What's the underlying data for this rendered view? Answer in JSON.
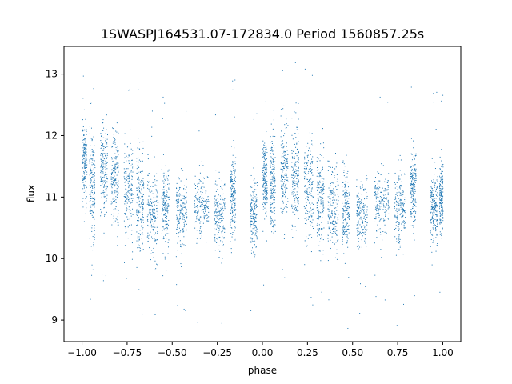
{
  "chart_data": {
    "type": "scatter",
    "title": "1SWASPJ164531.07-172834.0 Period 1560857.25s",
    "xlabel": "phase",
    "ylabel": "flux",
    "xlim": [
      -1.1,
      1.1
    ],
    "ylim": [
      8.65,
      13.45
    ],
    "grid": false,
    "marker_color": "#1f77b4",
    "x_ticks": [
      {
        "value": -1.0,
        "label": "−1.00"
      },
      {
        "value": -0.75,
        "label": "−0.75"
      },
      {
        "value": -0.5,
        "label": "−0.50"
      },
      {
        "value": -0.25,
        "label": "−0.25"
      },
      {
        "value": 0.0,
        "label": "0.00"
      },
      {
        "value": 0.25,
        "label": "0.25"
      },
      {
        "value": 0.5,
        "label": "0.50"
      },
      {
        "value": 0.75,
        "label": "0.75"
      },
      {
        "value": 1.0,
        "label": "1.00"
      }
    ],
    "y_ticks": [
      {
        "value": 9,
        "label": "9"
      },
      {
        "value": 10,
        "label": "10"
      },
      {
        "value": 11,
        "label": "11"
      },
      {
        "value": 12,
        "label": "12"
      },
      {
        "value": 13,
        "label": "13"
      }
    ],
    "series": [
      {
        "phase_range": [
          -1.0,
          1.0
        ],
        "point_count": 5000,
        "period_phase": 1.0,
        "clusters": [
          {
            "x": [
              -1.0,
              -0.975
            ],
            "y_center": 11.6,
            "y_spread": 0.6
          },
          {
            "x": [
              -0.96,
              -0.93
            ],
            "y_center": 11.2,
            "y_spread": 0.75
          },
          {
            "x": [
              -0.9,
              -0.86
            ],
            "y_center": 11.4,
            "y_spread": 0.7
          },
          {
            "x": [
              -0.84,
              -0.8
            ],
            "y_center": 11.3,
            "y_spread": 0.65
          },
          {
            "x": [
              -0.77,
              -0.72
            ],
            "y_center": 11.1,
            "y_spread": 0.8
          },
          {
            "x": [
              -0.7,
              -0.66
            ],
            "y_center": 10.95,
            "y_spread": 0.7
          },
          {
            "x": [
              -0.64,
              -0.58
            ],
            "y_center": 10.8,
            "y_spread": 0.65
          },
          {
            "x": [
              -0.56,
              -0.52
            ],
            "y_center": 10.8,
            "y_spread": 0.6
          },
          {
            "x": [
              -0.48,
              -0.42
            ],
            "y_center": 10.75,
            "y_spread": 0.5
          },
          {
            "x": [
              -0.38,
              -0.3
            ],
            "y_center": 10.9,
            "y_spread": 0.45
          },
          {
            "x": [
              -0.27,
              -0.21
            ],
            "y_center": 10.75,
            "y_spread": 0.55
          },
          {
            "x": [
              -0.18,
              -0.15
            ],
            "y_center": 11.0,
            "y_spread": 0.6
          },
          {
            "x": [
              -0.07,
              -0.03
            ],
            "y_center": 10.7,
            "y_spread": 0.5
          },
          {
            "x": [
              0.0,
              0.025
            ],
            "y_center": 11.3,
            "y_spread": 0.6
          },
          {
            "x": [
              0.04,
              0.07
            ],
            "y_center": 11.2,
            "y_spread": 0.75
          },
          {
            "x": [
              0.1,
              0.14
            ],
            "y_center": 11.4,
            "y_spread": 0.7
          },
          {
            "x": [
              0.16,
              0.2
            ],
            "y_center": 11.3,
            "y_spread": 0.65
          },
          {
            "x": [
              0.23,
              0.28
            ],
            "y_center": 11.1,
            "y_spread": 0.8
          },
          {
            "x": [
              0.3,
              0.34
            ],
            "y_center": 10.95,
            "y_spread": 0.7
          },
          {
            "x": [
              0.36,
              0.42
            ],
            "y_center": 10.8,
            "y_spread": 0.65
          },
          {
            "x": [
              0.44,
              0.48
            ],
            "y_center": 10.8,
            "y_spread": 0.6
          },
          {
            "x": [
              0.52,
              0.58
            ],
            "y_center": 10.75,
            "y_spread": 0.5
          },
          {
            "x": [
              0.62,
              0.7
            ],
            "y_center": 10.9,
            "y_spread": 0.45
          },
          {
            "x": [
              0.73,
              0.79
            ],
            "y_center": 10.85,
            "y_spread": 0.55
          },
          {
            "x": [
              0.82,
              0.85
            ],
            "y_center": 11.2,
            "y_spread": 0.6
          },
          {
            "x": [
              0.93,
              0.97
            ],
            "y_center": 10.8,
            "y_spread": 0.5
          },
          {
            "x": [
              0.98,
              1.0
            ],
            "y_center": 11.0,
            "y_spread": 0.5
          }
        ]
      }
    ]
  }
}
